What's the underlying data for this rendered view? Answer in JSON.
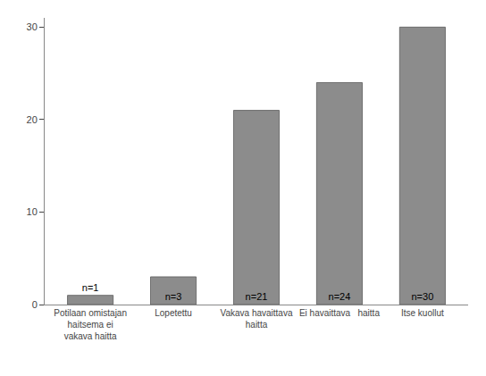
{
  "chart_data": {
    "type": "bar",
    "categories": [
      "Potilaan omistajan\nhaitsema ei\nvakava haitta",
      "Lopetettu",
      "Vakava havaittava\nhaitta",
      "Ei havaittava   haitta",
      "Itse kuollut"
    ],
    "values": [
      1,
      3,
      21,
      24,
      30
    ],
    "value_labels": [
      "n=1",
      "n=3",
      "n=21",
      "n=24",
      "n=30"
    ],
    "data_labels": true,
    "color": "#8c8c8c",
    "ylim": [
      0,
      31
    ],
    "yticks": [
      0,
      10,
      20,
      30
    ],
    "grid": false
  }
}
